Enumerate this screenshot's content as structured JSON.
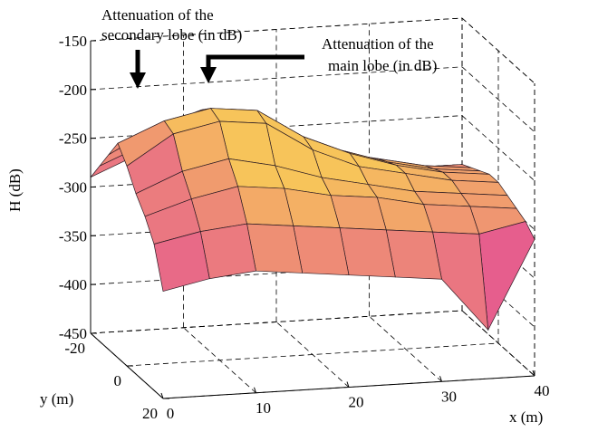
{
  "chart_data": {
    "type": "surface3d",
    "zlabel": "H (dB)",
    "ylabel": "y (m)",
    "xlabel": "x (m)",
    "annotations": [
      {
        "lines": [
          "Attenuation of the",
          "secondary lobe (in dB)"
        ]
      },
      {
        "lines": [
          "Attenuation of the",
          "main lobe (in dB)"
        ]
      }
    ],
    "xlim": [
      0,
      40
    ],
    "xticks": [
      0,
      10,
      20,
      30,
      40
    ],
    "ylim": [
      -20,
      20
    ],
    "yticks": [
      -20,
      0,
      20
    ],
    "zlim": [
      -450,
      -150
    ],
    "zticks": [
      -150,
      -200,
      -250,
      -300,
      -350,
      -400,
      -450
    ],
    "colormap": [
      "#e2449a",
      "#f7c45a"
    ],
    "grid": true,
    "x": [
      0,
      5,
      10,
      15,
      20,
      25,
      30,
      35,
      40
    ],
    "y": [
      -20,
      -15,
      -10,
      -5,
      0,
      5,
      10,
      15,
      20
    ],
    "z": [
      [
        -290,
        -270,
        -260,
        -265,
        -275,
        -285,
        -290,
        -300,
        -300
      ],
      [
        -270,
        -250,
        -235,
        -240,
        -255,
        -270,
        -280,
        -290,
        -295
      ],
      [
        -250,
        -225,
        -210,
        -215,
        -240,
        -260,
        -275,
        -285,
        -290
      ],
      [
        -230,
        -210,
        -200,
        -205,
        -235,
        -255,
        -270,
        -280,
        -285
      ],
      [
        -245,
        -215,
        -205,
        -210,
        -240,
        -260,
        -270,
        -280,
        -285
      ],
      [
        -265,
        -245,
        -235,
        -245,
        -260,
        -270,
        -280,
        -285,
        -290
      ],
      [
        -280,
        -265,
        -255,
        -260,
        -270,
        -275,
        -285,
        -290,
        -295
      ],
      [
        -300,
        -290,
        -285,
        -290,
        -295,
        -300,
        -305,
        -310,
        -300
      ],
      [
        -340,
        -330,
        -325,
        -330,
        -335,
        -340,
        -345,
        -400,
        -310
      ]
    ]
  }
}
